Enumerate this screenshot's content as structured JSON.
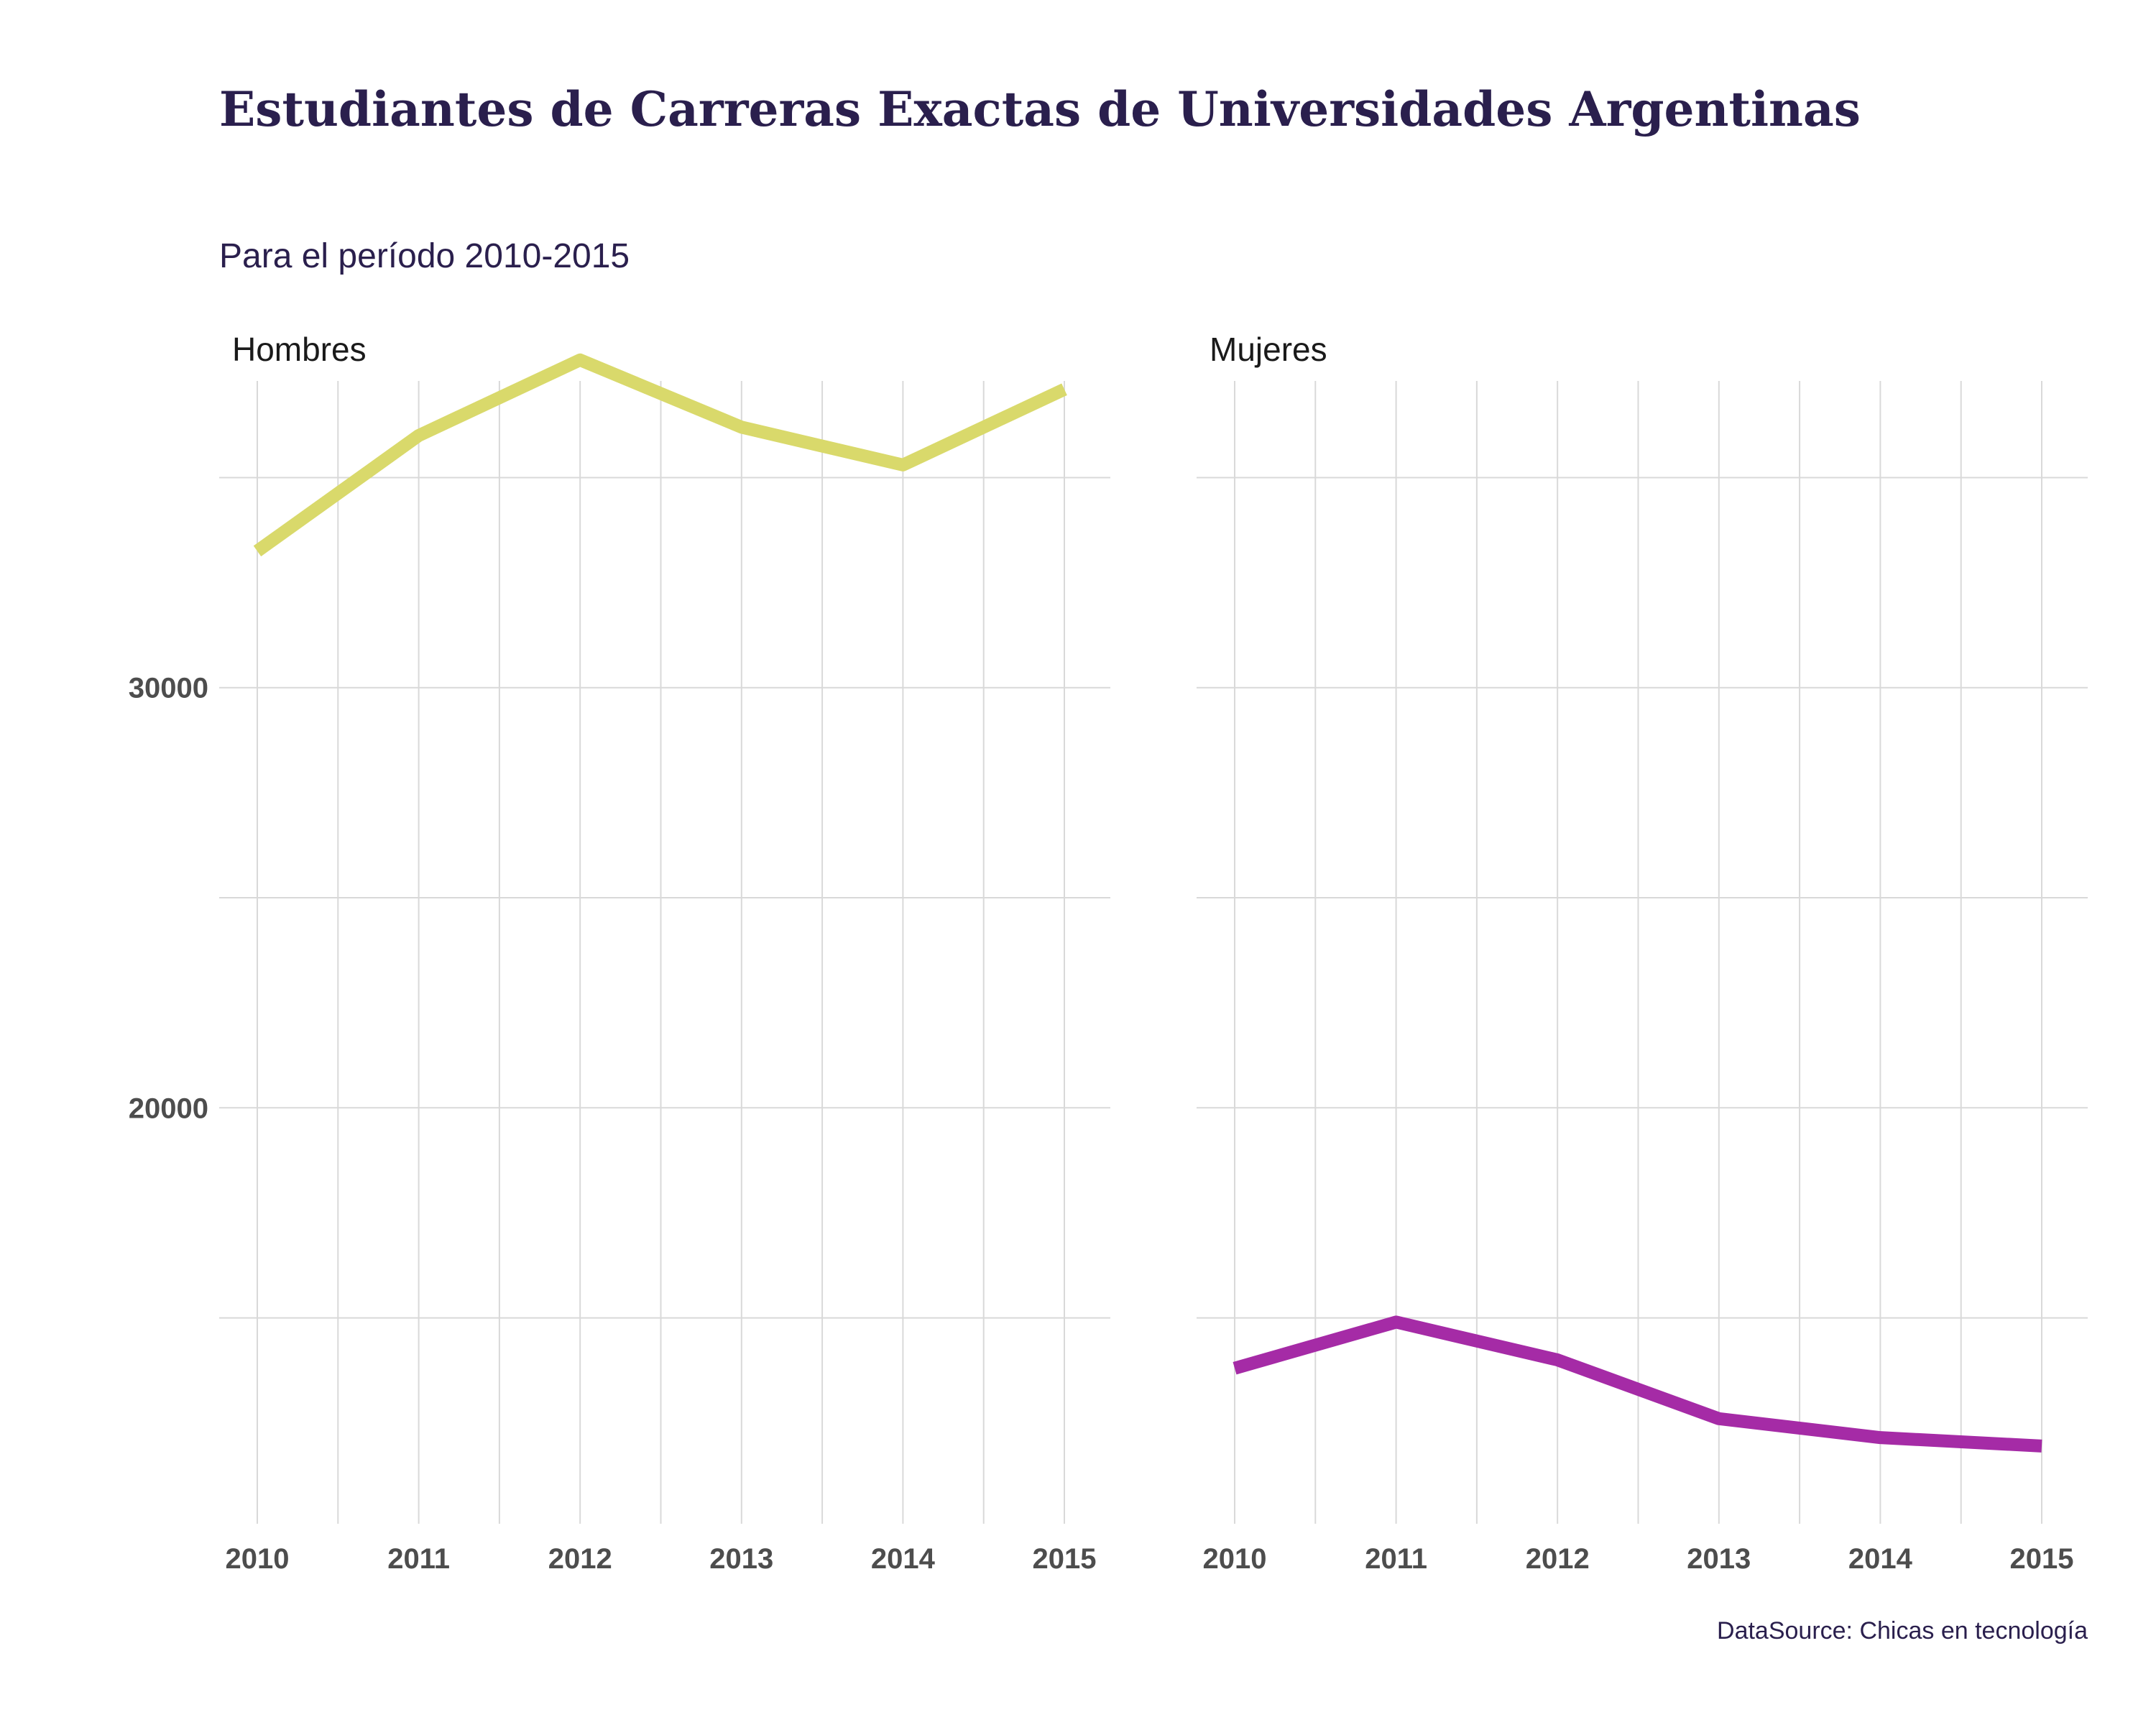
{
  "chart_data": {
    "type": "line",
    "title": "Estudiantes de Carreras Exactas de Universidades Argentinas",
    "subtitle": "Para el período 2010-2015",
    "caption": "DataSource: Chicas en tecnología",
    "x": [
      2010,
      2011,
      2012,
      2013,
      2014,
      2015
    ],
    "x_tick_labels": [
      "2010",
      "2011",
      "2012",
      "2013",
      "2014",
      "2015"
    ],
    "y_ticks": [
      20000,
      30000
    ],
    "y_tick_labels": [
      "20000",
      "30000"
    ],
    "ylim": [
      10100,
      37300
    ],
    "grid": true,
    "facets": [
      {
        "name": "Hombres",
        "color": "#d9d96b",
        "values": [
          33250,
          36000,
          37800,
          36200,
          35300,
          37100
        ]
      },
      {
        "name": "Mujeres",
        "color": "#a52ba6",
        "values": [
          13800,
          14900,
          14000,
          12600,
          12150,
          11950
        ]
      }
    ]
  }
}
